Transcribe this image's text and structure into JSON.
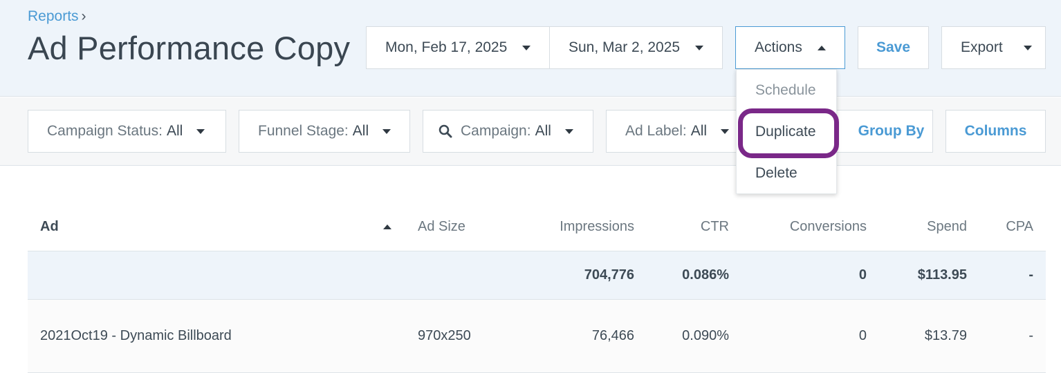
{
  "breadcrumb": {
    "parent": "Reports",
    "separator": "›"
  },
  "page_title": "Ad Performance Copy",
  "date_range": {
    "start": "Mon, Feb 17, 2025",
    "end": "Sun, Mar 2, 2025"
  },
  "toolbar": {
    "actions_label": "Actions",
    "save_label": "Save",
    "export_label": "Export"
  },
  "actions_menu": {
    "items": [
      {
        "label": "Schedule",
        "state": "disabled"
      },
      {
        "label": "Duplicate",
        "state": "highlighted"
      },
      {
        "label": "Delete",
        "state": "normal"
      }
    ]
  },
  "filters": [
    {
      "label": "Campaign Status:",
      "value": "All"
    },
    {
      "label": "Funnel Stage:",
      "value": "All"
    },
    {
      "label": "Campaign:",
      "value": "All",
      "icon": "search-icon"
    },
    {
      "label": "Ad Label:",
      "value": "All"
    }
  ],
  "filter_actions": {
    "group_by": "Group By",
    "columns": "Columns"
  },
  "table": {
    "columns": [
      "Ad",
      "Ad Size",
      "Impressions",
      "CTR",
      "Conversions",
      "Spend",
      "CPA"
    ],
    "sort": {
      "column": "Ad",
      "direction": "ascending"
    },
    "totals": {
      "ad": "",
      "ad_size": "",
      "impressions": "704,776",
      "ctr": "0.086%",
      "conversions": "0",
      "spend": "$113.95",
      "cpa": "-"
    },
    "rows": [
      {
        "ad": "2021Oct19 - Dynamic Billboard",
        "ad_size": "970x250",
        "impressions": "76,466",
        "ctr": "0.090%",
        "conversions": "0",
        "spend": "$13.79",
        "cpa": "-"
      }
    ]
  },
  "colors": {
    "accent": "#4a9ad4",
    "highlight": "#7a2888",
    "header_bg": "#eef4fa"
  }
}
